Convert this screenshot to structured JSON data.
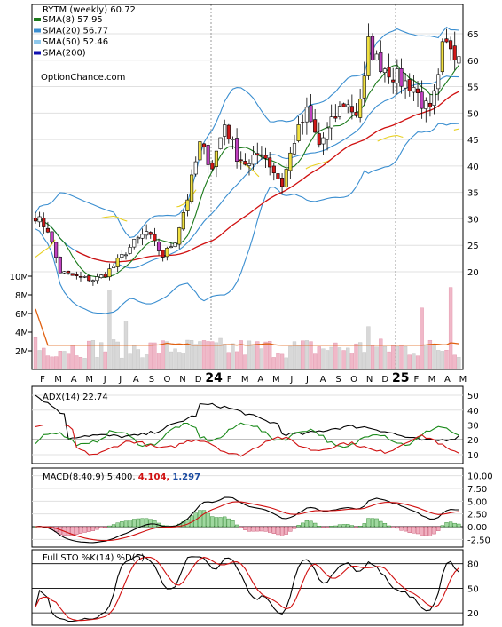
{
  "chart_data": [
    {
      "type": "candlestick",
      "panel": "price",
      "title": "RYTM (weekly) 60.72",
      "watermark": "OptionChance.com",
      "legend": [
        {
          "label": "SMA(8) 57.95",
          "color": "#1a7a1a"
        },
        {
          "label": "SMA(20) 56.77",
          "color": "#3a8ed0"
        },
        {
          "label": "SMA(50) 52.46",
          "color": "#8ec8ec"
        },
        {
          "label": "SMA(200)",
          "color": "#1010b0"
        }
      ],
      "legend_placement": "top-left",
      "y_ticks": [
        20,
        25,
        30,
        35,
        40,
        45,
        50,
        55,
        60,
        65
      ],
      "ylim": [
        15.5,
        69
      ],
      "volume_ticks": [
        "2M",
        "4M",
        "6M",
        "8M",
        "10M"
      ],
      "x_ticks": [
        "F",
        "M",
        "A",
        "M",
        "J",
        "J",
        "A",
        "S",
        "O",
        "N",
        "D",
        "24",
        "F",
        "M",
        "A",
        "M",
        "J",
        "J",
        "A",
        "S",
        "O",
        "N",
        "D",
        "25",
        "F",
        "M",
        "A",
        "M"
      ],
      "close_anchors": [
        [
          0,
          30.5
        ],
        [
          3,
          28
        ],
        [
          6,
          20
        ],
        [
          10,
          19
        ],
        [
          14,
          18.5
        ],
        [
          17,
          19.5
        ],
        [
          20,
          22
        ],
        [
          24,
          25.5
        ],
        [
          27,
          27.5
        ],
        [
          31,
          23
        ],
        [
          34,
          26
        ],
        [
          37,
          34
        ],
        [
          40,
          44
        ],
        [
          43,
          40
        ],
        [
          46,
          48
        ],
        [
          49,
          42
        ],
        [
          52,
          40
        ],
        [
          55,
          43
        ],
        [
          58,
          39
        ],
        [
          60,
          36.5
        ],
        [
          63,
          45
        ],
        [
          66,
          50
        ],
        [
          69,
          44
        ],
        [
          72,
          48
        ],
        [
          75,
          52
        ],
        [
          78,
          50
        ],
        [
          80,
          56
        ],
        [
          81,
          63
        ],
        [
          83,
          60
        ],
        [
          86,
          58
        ],
        [
          89,
          56
        ],
        [
          92,
          55
        ],
        [
          94,
          52
        ],
        [
          96,
          50
        ],
        [
          98,
          56
        ],
        [
          99,
          62
        ],
        [
          101,
          63
        ],
        [
          103,
          60.7
        ]
      ]
    },
    {
      "type": "line",
      "panel": "adx",
      "label": "ADX(14) 22.74",
      "y_ticks": [
        10,
        20,
        30,
        40,
        50
      ],
      "ylim": [
        4,
        56
      ]
    },
    {
      "type": "line",
      "panel": "macd",
      "label": "MACD(8,40,9) 5.400,",
      "signal_value": "4.104,",
      "histogram_value": "1.297",
      "y_ticks": [
        "-2.50",
        "0.00",
        "2.50",
        "5.00",
        "7.50",
        "10.00"
      ],
      "ylim": [
        -4,
        11.5
      ]
    },
    {
      "type": "line",
      "panel": "stochastic",
      "label": "Full STO %K(14) %D(5)",
      "y_ticks": [
        20,
        50,
        80
      ],
      "ylim": [
        5,
        97
      ]
    }
  ]
}
